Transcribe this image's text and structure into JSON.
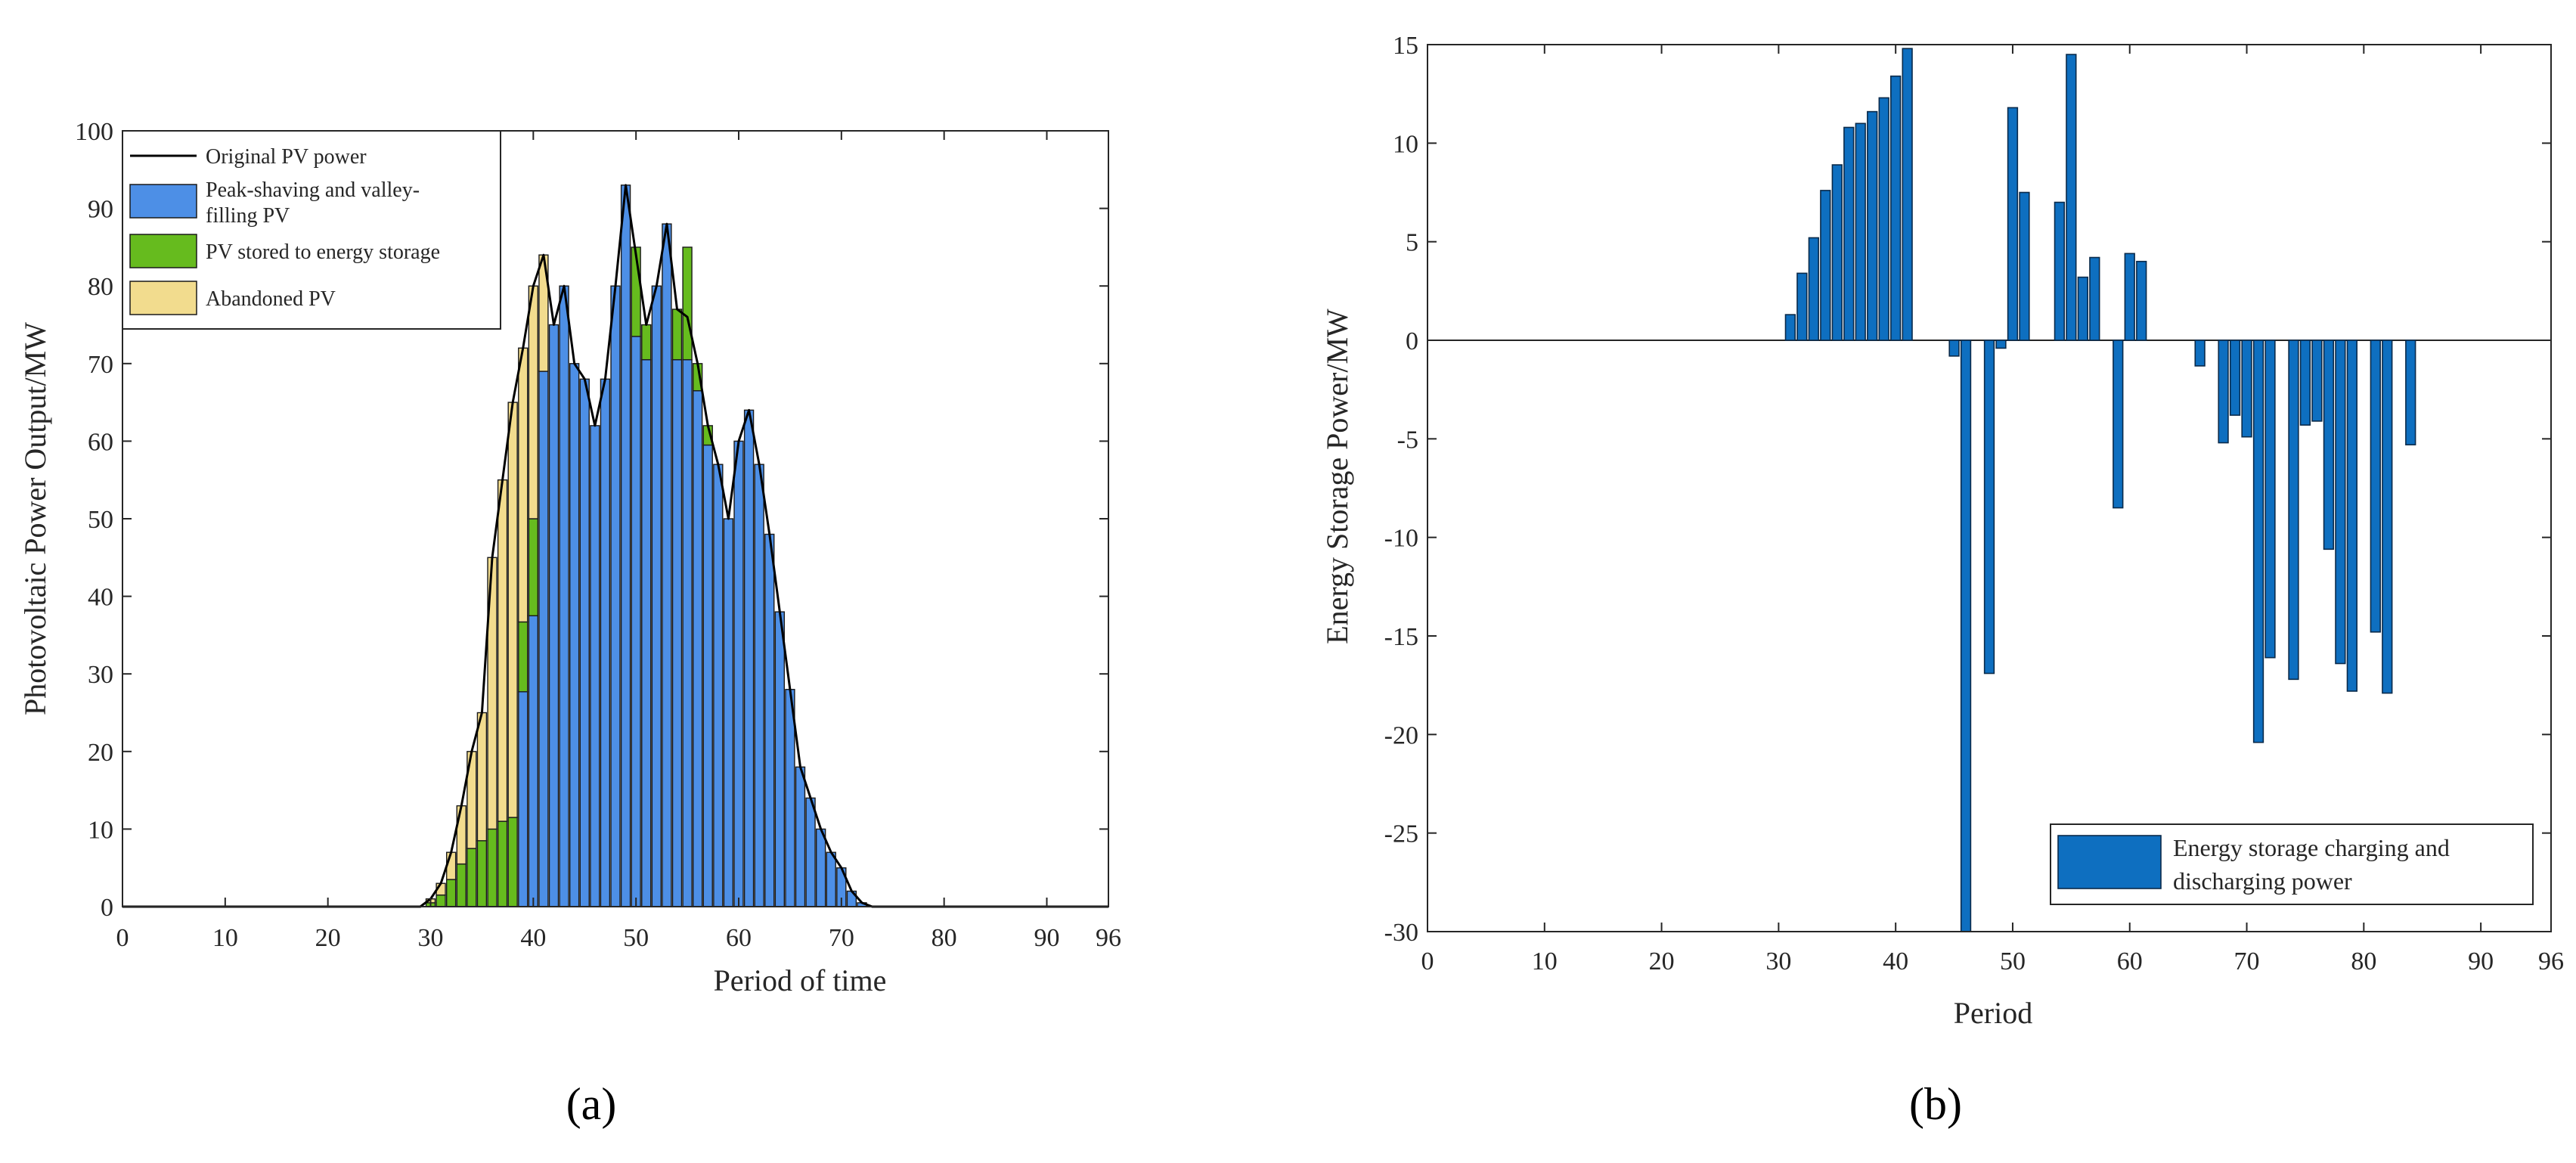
{
  "chart_data": [
    {
      "type": "bar",
      "stacked": true,
      "panel_label": "(a)",
      "title": "",
      "xlabel": "Period of time",
      "ylabel": "Photovoltaic Power Output/MW",
      "xlim": [
        0,
        96
      ],
      "ylim": [
        0,
        100
      ],
      "xticks": [
        "0",
        "10",
        "20",
        "30",
        "40",
        "50",
        "60",
        "70",
        "80",
        "90",
        "96"
      ],
      "yticks": [
        "0",
        "10",
        "20",
        "30",
        "40",
        "50",
        "60",
        "70",
        "80",
        "90",
        "100"
      ],
      "legend_position": "top-left",
      "x": [
        30,
        31,
        32,
        33,
        34,
        35,
        36,
        37,
        38,
        39,
        40,
        41,
        42,
        43,
        44,
        45,
        46,
        47,
        48,
        49,
        50,
        51,
        52,
        53,
        54,
        55,
        56,
        57,
        58,
        59,
        60,
        61,
        62,
        63,
        64,
        65,
        66,
        67,
        68,
        69,
        70,
        71,
        72
      ],
      "line_series": {
        "name": "Original PV power",
        "color": "#000000",
        "values": [
          1,
          3,
          7,
          13,
          20,
          25,
          45,
          55,
          65,
          72,
          80,
          84,
          75,
          80,
          70,
          68,
          62,
          68,
          80,
          93,
          84,
          75,
          80,
          88,
          77,
          76,
          70,
          62,
          57,
          50,
          60,
          64,
          57,
          48,
          38,
          28,
          18,
          14,
          10,
          7,
          5,
          2,
          0.5
        ]
      },
      "series": [
        {
          "name": "Peak-shaving and valley-filling PV",
          "color": "#4d8fe6",
          "values": [
            0,
            0,
            0,
            0,
            0,
            0,
            0,
            0,
            0,
            27.7,
            37.5,
            69,
            75,
            80,
            70,
            68,
            62,
            68,
            80,
            93,
            73.5,
            70.5,
            80,
            88,
            70.5,
            70.5,
            66.5,
            59.5,
            57,
            50,
            60,
            64,
            57,
            48,
            38,
            28,
            18,
            14,
            10,
            7,
            5,
            2,
            0.5
          ]
        },
        {
          "name": "PV stored to energy storage",
          "color": "#66bb1e",
          "values": [
            0.5,
            1.5,
            3.5,
            5.5,
            7.5,
            8.5,
            10,
            11,
            11.5,
            9,
            12.5,
            0,
            0,
            0,
            0,
            0,
            0,
            0,
            0,
            0,
            11.5,
            4.5,
            0,
            0,
            6.5,
            14.5,
            3.5,
            2.5,
            0,
            0,
            0,
            0,
            0,
            0,
            0,
            0,
            0,
            0,
            0,
            0,
            0,
            0,
            0
          ]
        },
        {
          "name": "Abandoned PV",
          "color": "#f2dc8e",
          "values": [
            0.5,
            1.5,
            3.5,
            7.5,
            12.5,
            16.5,
            35,
            44,
            53.5,
            35.3,
            30,
            15,
            0,
            0,
            0,
            0,
            0,
            0,
            0,
            0,
            0,
            0,
            0,
            0,
            0,
            0,
            0,
            0,
            0,
            0,
            0,
            0,
            0,
            0,
            0,
            0,
            0,
            0,
            0,
            0,
            0,
            0,
            0
          ]
        }
      ],
      "legend_entries": [
        "Original PV power",
        "Peak-shaving and valley-",
        "filling PV",
        "PV stored to energy storage",
        "Abandoned PV"
      ]
    },
    {
      "type": "bar",
      "panel_label": "(b)",
      "title": "",
      "xlabel": "Period",
      "ylabel": "Energy Storage Power/MW",
      "xlim": [
        0,
        96
      ],
      "ylim": [
        -30,
        15
      ],
      "xticks": [
        "0",
        "10",
        "20",
        "30",
        "40",
        "50",
        "60",
        "70",
        "80",
        "90",
        "96"
      ],
      "yticks": [
        "-30",
        "-25",
        "-20",
        "-15",
        "-10",
        "-5",
        "0",
        "5",
        "10",
        "15"
      ],
      "legend_position": "bottom-right",
      "series": [
        {
          "name": "Energy storage charging and discharging power",
          "color": "#0e6fc0",
          "x": [
            31,
            32,
            33,
            34,
            35,
            36,
            37,
            38,
            39,
            40,
            41,
            45,
            46,
            48,
            49,
            50,
            51,
            54,
            55,
            56,
            57,
            59,
            60,
            61,
            66,
            68,
            69,
            70,
            71,
            72,
            74,
            75,
            76,
            77,
            78,
            79,
            81,
            82,
            84
          ],
          "values": [
            1.3,
            3.4,
            5.2,
            7.6,
            8.9,
            10.8,
            11.0,
            11.6,
            12.3,
            13.4,
            14.8,
            -0.8,
            -30,
            -16.9,
            -0.4,
            11.8,
            7.5,
            7.0,
            14.5,
            3.2,
            4.2,
            -8.5,
            4.4,
            4.0,
            -1.3,
            -5.2,
            -3.8,
            -4.9,
            -20.4,
            -16.1,
            -17.2,
            -4.3,
            -4.1,
            -10.6,
            -16.4,
            -17.8,
            -14.8,
            -17.9,
            -5.3
          ]
        }
      ],
      "legend_entries": [
        "Energy storage charging and",
        "discharging power"
      ]
    }
  ]
}
